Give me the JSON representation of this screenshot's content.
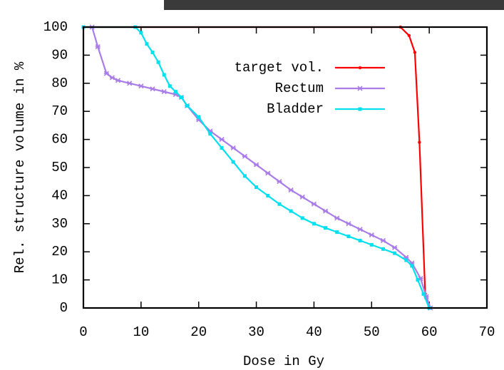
{
  "chart_data": {
    "type": "line",
    "xlabel": "Dose in Gy",
    "ylabel": "Rel. structure volume in %",
    "xlim": [
      0,
      70
    ],
    "xticks": [
      0,
      10,
      20,
      30,
      40,
      50,
      60,
      70
    ],
    "ylim": [
      0,
      100
    ],
    "yticks": [
      0,
      10,
      20,
      30,
      40,
      50,
      60,
      70,
      80,
      90,
      100
    ],
    "legend": "top-center",
    "series": [
      {
        "name": "target vol.",
        "color": "#ff0000",
        "marker": "dot",
        "x": [
          0,
          55,
          56.5,
          57.5,
          58.3,
          59.3,
          60.2
        ],
        "values": [
          100,
          100,
          97,
          91,
          59,
          5,
          0
        ]
      },
      {
        "name": "Rectum",
        "color": "#a97ce8",
        "marker": "cross",
        "x": [
          1.5,
          2.5,
          4,
          5,
          6,
          8,
          10,
          12,
          14,
          16,
          17,
          18,
          20,
          22,
          24,
          26,
          28,
          30,
          32,
          34,
          36,
          38,
          40,
          42,
          44,
          46,
          48,
          50,
          52,
          54,
          56,
          57,
          58.5,
          59.5,
          60.2
        ],
        "values": [
          100,
          93,
          83.5,
          82,
          81,
          80,
          79,
          78,
          77,
          76,
          75,
          72,
          67,
          63,
          60,
          57,
          54,
          51,
          48,
          45,
          42,
          39.5,
          37,
          34.5,
          32,
          30,
          28,
          26,
          24,
          21.5,
          18,
          16,
          10.5,
          4,
          0
        ]
      },
      {
        "name": "Bladder",
        "color": "#00e0ee",
        "marker": "square",
        "x": [
          0,
          9,
          10,
          11,
          12,
          13,
          14,
          15,
          16,
          17,
          18,
          20,
          22,
          24,
          26,
          28,
          30,
          32,
          34,
          36,
          38,
          40,
          42,
          44,
          46,
          48,
          50,
          52,
          54,
          56,
          57,
          58,
          59,
          60
        ],
        "values": [
          100,
          100,
          98,
          94,
          91,
          87.5,
          83,
          79,
          77,
          75,
          72,
          68,
          62,
          57,
          52,
          47,
          43,
          40,
          37,
          34.5,
          32,
          30,
          28.5,
          27,
          25.5,
          24,
          22.5,
          21,
          19.5,
          17,
          15,
          10,
          5,
          0
        ]
      }
    ]
  }
}
